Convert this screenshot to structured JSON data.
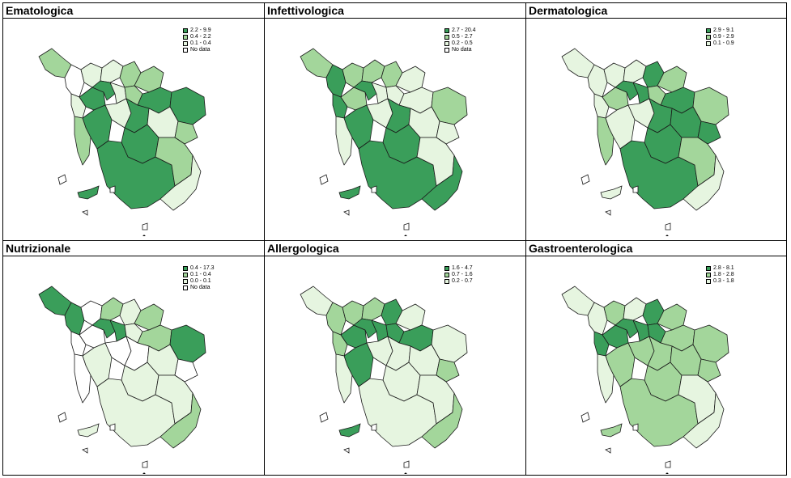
{
  "colors": {
    "dark": "#3a9e5a",
    "mid": "#a3d69b",
    "light": "#e6f5e0",
    "none": "#ffffff",
    "stroke": "#1a1a1a"
  },
  "panels": [
    {
      "title": "Ematologica",
      "legend": [
        {
          "label": "2.2 - 9.9",
          "color": "dark"
        },
        {
          "label": "0.4 - 2.2",
          "color": "mid"
        },
        {
          "label": "0.1 - 0.4",
          "color": "light"
        },
        {
          "label": "No data",
          "color": "none"
        }
      ],
      "fills": [
        "mid",
        "none",
        "light",
        "light",
        "mid",
        "mid",
        "light",
        "dark",
        "dark",
        "light",
        "mid",
        "dark",
        "dark",
        "dark",
        "mid",
        "light",
        "dark",
        "dark",
        "light",
        "mid",
        "dark",
        "mid",
        "light"
      ]
    },
    {
      "title": "Infettivologica",
      "legend": [
        {
          "label": "2.7 - 20.4",
          "color": "dark"
        },
        {
          "label": "0.5 - 2.7",
          "color": "mid"
        },
        {
          "label": "0.2 - 0.5",
          "color": "light"
        },
        {
          "label": "No data",
          "color": "none"
        }
      ],
      "fills": [
        "mid",
        "dark",
        "mid",
        "mid",
        "mid",
        "light",
        "dark",
        "mid",
        "dark",
        "light",
        "light",
        "light",
        "mid",
        "dark",
        "light",
        "light",
        "dark",
        "dark",
        "light",
        "light",
        "dark",
        "light",
        "dark"
      ]
    },
    {
      "title": "Dermatologica",
      "legend": [
        {
          "label": "2.9 - 9.1",
          "color": "dark"
        },
        {
          "label": "0.9 - 2.9",
          "color": "mid"
        },
        {
          "label": "0.1 - 0.9",
          "color": "light"
        }
      ],
      "fills": [
        "light",
        "light",
        "light",
        "light",
        "dark",
        "mid",
        "light",
        "mid",
        "dark",
        "dark",
        "mid",
        "dark",
        "mid",
        "light",
        "mid",
        "light",
        "dark",
        "dark",
        "dark",
        "dark",
        "dark",
        "mid",
        "light"
      ]
    },
    {
      "title": "Nutrizionale",
      "legend": [
        {
          "label": "0.4 - 17.3",
          "color": "dark"
        },
        {
          "label": "0.1 - 0.4",
          "color": "mid"
        },
        {
          "label": "0.0 - 0.1",
          "color": "light"
        },
        {
          "label": "No data",
          "color": "none"
        }
      ],
      "fills": [
        "dark",
        "dark",
        "none",
        "mid",
        "light",
        "mid",
        "none",
        "none",
        "dark",
        "dark",
        "light",
        "mid",
        "dark",
        "light",
        "none",
        "none",
        "none",
        "light",
        "light",
        "none",
        "light",
        "light",
        "mid"
      ]
    },
    {
      "title": "Allergologica",
      "legend": [
        {
          "label": "1.6 - 4.7",
          "color": "dark"
        },
        {
          "label": "0.7 - 1.6",
          "color": "mid"
        },
        {
          "label": "0.2 - 0.7",
          "color": "light"
        }
      ],
      "fills": [
        "light",
        "mid",
        "mid",
        "mid",
        "dark",
        "light",
        "mid",
        "dark",
        "dark",
        "dark",
        "dark",
        "dark",
        "light",
        "dark",
        "light",
        "light",
        "light",
        "light",
        "light",
        "mid",
        "light",
        "light",
        "mid"
      ]
    },
    {
      "title": "Gastroenterologica",
      "legend": [
        {
          "label": "2.8 - 8.1",
          "color": "dark"
        },
        {
          "label": "1.8 - 2.8",
          "color": "mid"
        },
        {
          "label": "0.3 - 1.8",
          "color": "light"
        }
      ],
      "fills": [
        "light",
        "light",
        "mid",
        "light",
        "dark",
        "mid",
        "dark",
        "dark",
        "dark",
        "dark",
        "dark",
        "mid",
        "mid",
        "mid",
        "light",
        "mid",
        "mid",
        "mid",
        "mid",
        "mid",
        "mid",
        "light",
        "light"
      ]
    }
  ]
}
